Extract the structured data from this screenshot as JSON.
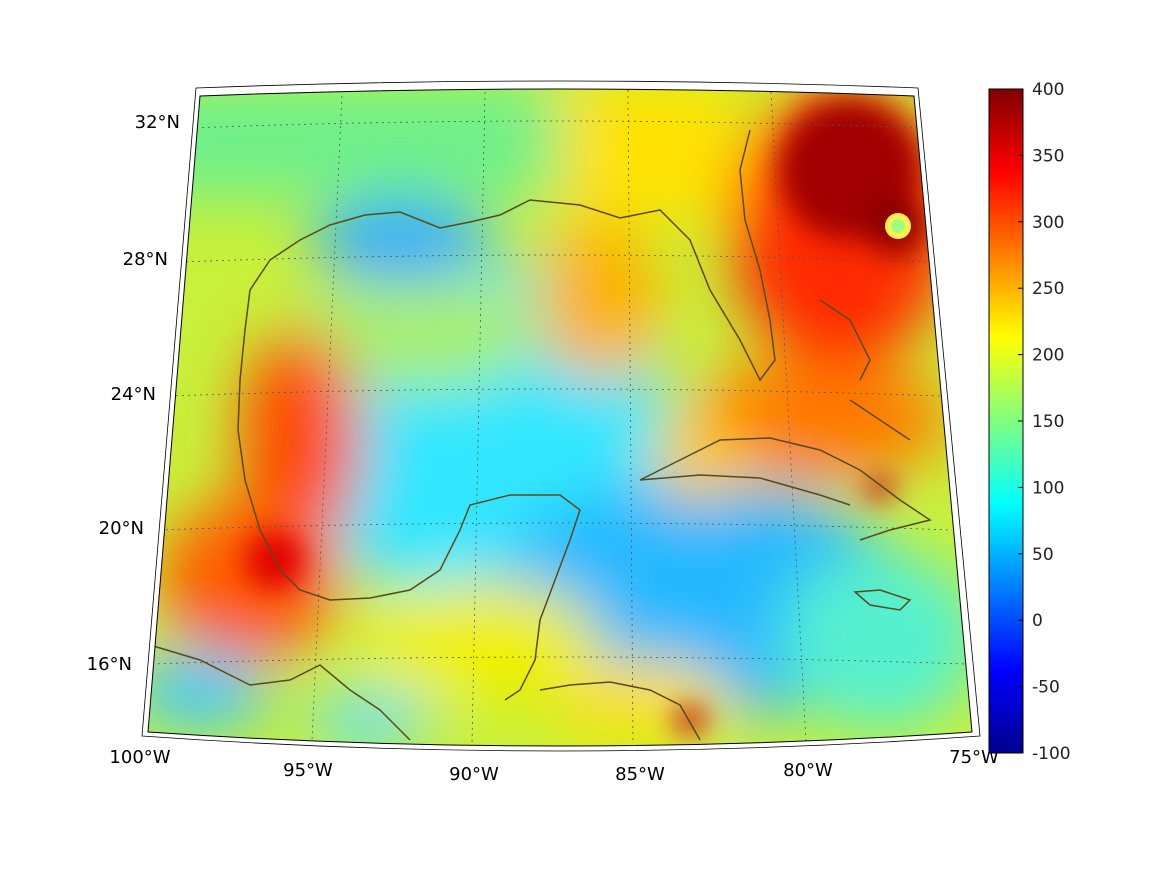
{
  "map": {
    "projection": "Lambert conformal conic (trapezoidal frame)",
    "lon_range": [
      -100,
      -75
    ],
    "lat_range": [
      14,
      33
    ],
    "lat_labels": [
      "32°N",
      "28°N",
      "24°N",
      "20°N",
      "16°N"
    ],
    "lon_labels": [
      "100°W",
      "95°W",
      "90°W",
      "85°W",
      "80°W",
      "75°W"
    ],
    "coastline_color": "#5a4a1a",
    "grid": "dotted",
    "colormap": "jet"
  },
  "colorbar": {
    "min": -100,
    "max": 400,
    "tick_labels": [
      "400",
      "350",
      "300",
      "250",
      "200",
      "150",
      "100",
      "50",
      "0",
      "-50",
      "-100"
    ]
  },
  "chart_data": {
    "type": "heatmap",
    "title": "",
    "xlabel": "",
    "ylabel": "",
    "x_ticks": [
      "100°W",
      "95°W",
      "90°W",
      "85°W",
      "80°W",
      "75°W"
    ],
    "y_ticks": [
      "32°N",
      "28°N",
      "24°N",
      "20°N",
      "16°N"
    ],
    "value_range": [
      -100,
      400
    ],
    "features": [
      {
        "name": "hurricane core near 29N 77W",
        "value": 400
      },
      {
        "name": "eye of storm",
        "value": 150
      },
      {
        "name": "Bay of Campeche coast",
        "value": 330
      },
      {
        "name": "central Gulf basin",
        "value": 100
      },
      {
        "name": "western Caribbean",
        "value": 70
      },
      {
        "name": "northern Gulf shelf",
        "value": 80
      }
    ]
  }
}
